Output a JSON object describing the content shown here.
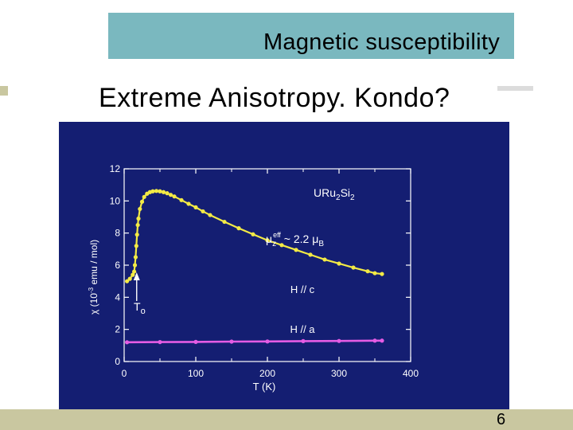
{
  "slide": {
    "title": "Magnetic susceptibility",
    "subtitle": "Extreme Anisotropy. Kondo?",
    "page_number": "6"
  },
  "colors": {
    "title_box": "#7ab8bf",
    "panel_bg": "#141e72",
    "accent_bar": "#c9c7a0",
    "series_c": "#f3ea45",
    "series_a": "#e45ce4",
    "axis": "#ffffff"
  },
  "chart_data": {
    "type": "scatter",
    "title": "",
    "xlabel": "T (K)",
    "ylabel_parts": {
      "prefix": "χ (10",
      "exp": "-3",
      "suffix": " emu / mol)"
    },
    "xlim": [
      0,
      400
    ],
    "ylim": [
      0,
      12
    ],
    "x_ticks": [
      0,
      100,
      200,
      300,
      400
    ],
    "y_ticks": [
      0,
      2,
      4,
      6,
      8,
      10,
      12
    ],
    "grid": false,
    "series": [
      {
        "name": "H // c",
        "x": [
          4,
          8,
          12,
          14,
          15,
          16,
          17,
          18,
          19,
          20,
          22,
          25,
          28,
          32,
          36,
          40,
          45,
          50,
          55,
          60,
          65,
          70,
          80,
          90,
          100,
          110,
          120,
          140,
          160,
          180,
          200,
          220,
          240,
          260,
          280,
          300,
          320,
          340,
          350,
          360
        ],
        "y": [
          5.0,
          5.15,
          5.4,
          5.6,
          6.0,
          6.5,
          7.2,
          7.9,
          8.5,
          8.9,
          9.5,
          9.95,
          10.25,
          10.45,
          10.55,
          10.6,
          10.62,
          10.6,
          10.55,
          10.48,
          10.38,
          10.28,
          10.05,
          9.82,
          9.6,
          9.35,
          9.12,
          8.7,
          8.3,
          7.92,
          7.55,
          7.25,
          6.95,
          6.65,
          6.35,
          6.1,
          5.85,
          5.62,
          5.5,
          5.45
        ]
      },
      {
        "name": "H // a",
        "x": [
          4,
          50,
          100,
          150,
          200,
          250,
          300,
          350,
          360
        ],
        "y": [
          1.2,
          1.21,
          1.22,
          1.24,
          1.25,
          1.27,
          1.28,
          1.3,
          1.3
        ]
      }
    ],
    "annotations": {
      "compound_base": "URu",
      "compound_sub1": "2",
      "compound_mid": "Si",
      "compound_sub2": "2",
      "mu_symbol": "μ",
      "mu_sub": "z",
      "mu_sup": "eff",
      "mu_value": " ~ 2.2 ",
      "mu_unit_symbol": "μ",
      "mu_unit_sub": "B",
      "to_main": "T",
      "to_sub": "o",
      "to_arrow_x": 17.5
    }
  }
}
